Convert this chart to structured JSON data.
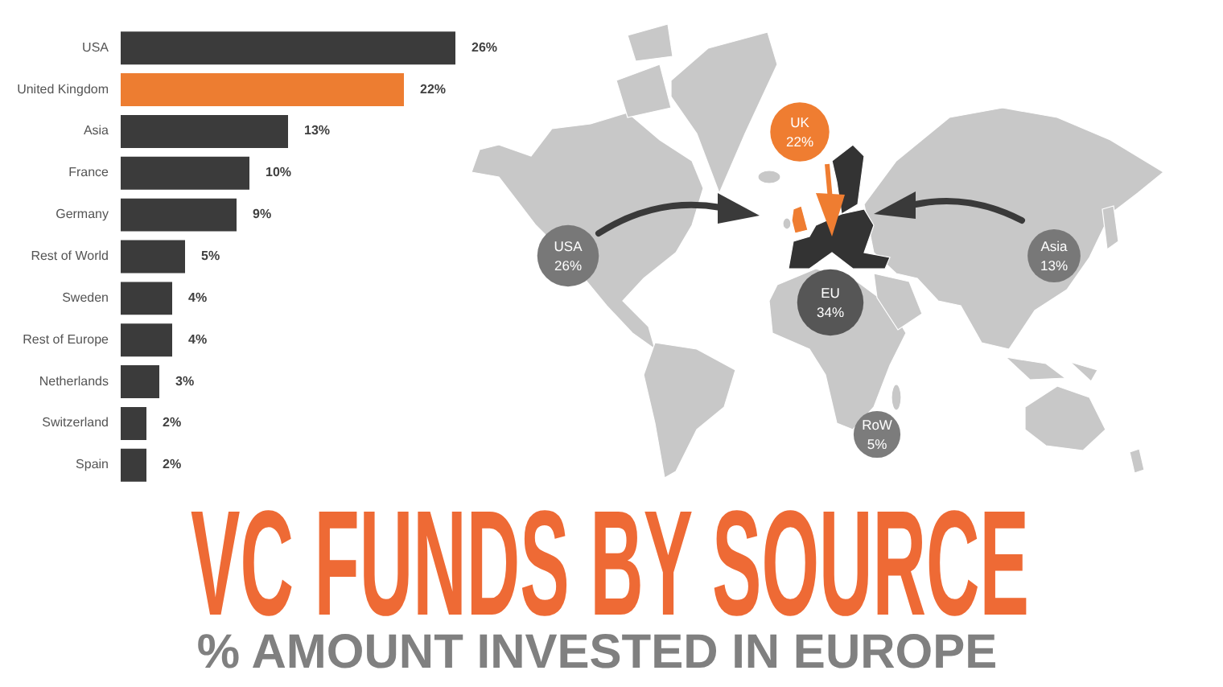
{
  "chart_data": [
    {
      "type": "bar",
      "orientation": "horizontal",
      "title": "VC FUNDS BY SOURCE",
      "subtitle": "% AMOUNT INVESTED IN EUROPE",
      "categories": [
        "USA",
        "United Kingdom",
        "Asia",
        "France",
        "Germany",
        "Rest of World",
        "Sweden",
        "Rest of Europe",
        "Netherlands",
        "Switzerland",
        "Spain"
      ],
      "values": [
        26,
        22,
        13,
        10,
        9,
        5,
        4,
        4,
        3,
        2,
        2
      ],
      "colors": [
        "#3b3b3b",
        "#ed7d31",
        "#3b3b3b",
        "#3b3b3b",
        "#3b3b3b",
        "#3b3b3b",
        "#3b3b3b",
        "#3b3b3b",
        "#3b3b3b",
        "#3b3b3b",
        "#3b3b3b"
      ],
      "value_labels": [
        "26%",
        "22%",
        "13%",
        "10%",
        "9%",
        "5%",
        "4%",
        "4%",
        "3%",
        "2%",
        "2%"
      ],
      "xlim": [
        0,
        26
      ],
      "tick_labels": "y"
    },
    {
      "type": "other",
      "categories": [
        "USA",
        "UK",
        "EU",
        "Asia",
        "RoW"
      ],
      "values": [
        26,
        22,
        34,
        13,
        5
      ],
      "colors": [
        "#787878",
        "#ef7d31",
        "#565656",
        "#787878",
        "#7c7c7c"
      ],
      "value_labels": [
        "26%",
        "22%",
        "34%",
        "13%",
        "5%"
      ]
    }
  ]
}
